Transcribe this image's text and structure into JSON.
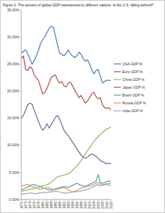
{
  "chart_data": {
    "type": "line",
    "title": "Figure 2. The percent of global GDP represented by different nations.  Is the U.S. falling behind?",
    "x": [
      1970,
      1971,
      1972,
      1973,
      1974,
      1975,
      1976,
      1977,
      1978,
      1979,
      1980,
      1981,
      1982,
      1983,
      1984,
      1985,
      1986,
      1987,
      1988,
      1989,
      1990,
      1991,
      1992,
      1993,
      1994,
      1995,
      1996,
      1997,
      1998,
      1999,
      2000,
      2001,
      2002,
      2003,
      2004,
      2005,
      2006,
      2007,
      2008,
      2009,
      2010,
      2011,
      2012
    ],
    "xlim": [
      1970,
      2012
    ],
    "xticks": [
      1970,
      1972,
      1974,
      1976,
      1978,
      1980,
      1982,
      1984,
      1986,
      1988,
      1990,
      1992,
      1994,
      1996,
      1998,
      2000,
      2002,
      2004,
      2006,
      2008,
      2010,
      2012
    ],
    "ylim": [
      0,
      35
    ],
    "yticks": [
      {
        "value": 0,
        "label": "0.00%"
      },
      {
        "value": 5,
        "label": "5.00%"
      },
      {
        "value": 10,
        "label": "10.00%"
      },
      {
        "value": 15,
        "label": "15.00%"
      },
      {
        "value": 20,
        "label": "20.00%"
      },
      {
        "value": 25,
        "label": "25.00%"
      },
      {
        "value": 30,
        "label": "30.00%"
      },
      {
        "value": 35,
        "label": "35.00%"
      }
    ],
    "grid": false,
    "legend": "right",
    "series": [
      {
        "name": "USA GDP %",
        "color": "#4f81bd",
        "values": [
          27.0,
          27.4,
          27.6,
          26.9,
          26.0,
          25.0,
          25.6,
          26.5,
          27.5,
          28.8,
          29.5,
          30.0,
          30.8,
          31.6,
          32.0,
          31.8,
          30.2,
          28.5,
          27.0,
          26.8,
          26.5,
          27.0,
          27.6,
          26.9,
          26.5,
          26.2,
          26.5,
          27.2,
          26.8,
          26.0,
          25.5,
          25.8,
          25.0,
          24.0,
          23.2,
          23.8,
          24.0,
          22.8,
          21.5,
          21.8,
          22.0,
          22.0,
          22.0
        ]
      },
      {
        "name": "Euro GDP %",
        "color": "#c0504d",
        "values": [
          26.0,
          26.5,
          24.0,
          23.8,
          24.5,
          24.2,
          23.0,
          22.5,
          22.0,
          20.8,
          19.5,
          19.8,
          20.5,
          21.5,
          22.5,
          22.8,
          23.0,
          22.0,
          21.5,
          21.8,
          21.0,
          20.8,
          21.5,
          21.6,
          21.0,
          20.2,
          19.5,
          18.8,
          19.2,
          18.5,
          17.8,
          18.2,
          18.8,
          19.5,
          19.8,
          19.0,
          18.6,
          18.8,
          17.5,
          17.0,
          16.8,
          17.0,
          16.5
        ]
      },
      {
        "name": "China GDP %",
        "color": "#9bbb59",
        "values": [
          1.5,
          1.6,
          1.7,
          1.8,
          1.9,
          2.0,
          2.0,
          2.1,
          2.2,
          2.4,
          2.5,
          2.6,
          2.7,
          2.9,
          3.2,
          3.5,
          3.9,
          4.2,
          4.3,
          4.4,
          4.5,
          4.6,
          4.8,
          5.0,
          5.4,
          5.8,
          6.2,
          6.6,
          7.2,
          7.8,
          8.4,
          9.0,
          9.6,
          10.2,
          10.7,
          11.2,
          11.6,
          12.0,
          12.4,
          12.7,
          13.0,
          13.2,
          13.4
        ]
      },
      {
        "name": "Japan GDP %",
        "color": "#8064a2",
        "values": [
          15.0,
          15.6,
          16.5,
          17.5,
          17.8,
          17.6,
          16.5,
          15.5,
          14.5,
          13.5,
          12.8,
          13.2,
          14.0,
          13.2,
          13.8,
          14.5,
          15.2,
          15.5,
          14.8,
          13.8,
          12.8,
          12.2,
          11.8,
          11.2,
          10.6,
          10.0,
          9.4,
          8.8,
          8.2,
          7.8,
          7.6,
          7.8,
          8.2,
          8.4,
          8.2,
          8.0,
          7.6,
          7.2,
          7.0,
          6.8,
          6.6,
          6.7,
          6.6
        ]
      },
      {
        "name": "Brazil GDP %",
        "color": "#4bacc6",
        "values": [
          1.8,
          1.9,
          2.1,
          2.3,
          2.5,
          2.7,
          2.8,
          2.6,
          2.5,
          2.4,
          2.2,
          2.0,
          1.9,
          1.8,
          1.7,
          1.8,
          2.0,
          2.1,
          2.2,
          2.3,
          2.4,
          2.3,
          2.2,
          2.4,
          2.6,
          2.8,
          3.0,
          2.8,
          2.6,
          2.5,
          2.4,
          2.6,
          2.8,
          3.0,
          3.2,
          3.4,
          4.6,
          3.2,
          3.0,
          3.1,
          3.3,
          3.4,
          3.4
        ]
      },
      {
        "name": "Russia GDP %",
        "color": "#f79646",
        "values": [
          2.5,
          2.6,
          2.7,
          2.8,
          2.6,
          2.4,
          2.3,
          2.2,
          2.0,
          1.9,
          2.0,
          2.1,
          2.2,
          2.1,
          2.0,
          1.9,
          1.8,
          1.9,
          2.0,
          2.1,
          2.2,
          2.0,
          1.8,
          1.6,
          1.4,
          1.5,
          1.7,
          1.9,
          2.1,
          2.2,
          2.3,
          2.4,
          2.5,
          2.6,
          2.8,
          3.0,
          3.2,
          2.9,
          2.7,
          2.8,
          2.9,
          3.0,
          3.0
        ]
      },
      {
        "name": "India GDP %",
        "color": "#93a9cf",
        "values": [
          1.0,
          1.0,
          1.1,
          1.1,
          1.2,
          1.2,
          1.1,
          1.1,
          1.2,
          1.2,
          1.3,
          1.3,
          1.3,
          1.4,
          1.4,
          1.5,
          1.5,
          1.5,
          1.4,
          1.3,
          1.2,
          1.2,
          1.3,
          1.3,
          1.4,
          1.4,
          1.5,
          1.5,
          1.6,
          1.7,
          1.8,
          1.9,
          2.0,
          2.2,
          2.4,
          2.6,
          2.8,
          2.5,
          2.6,
          2.7,
          2.8,
          2.7,
          2.6
        ]
      }
    ]
  }
}
